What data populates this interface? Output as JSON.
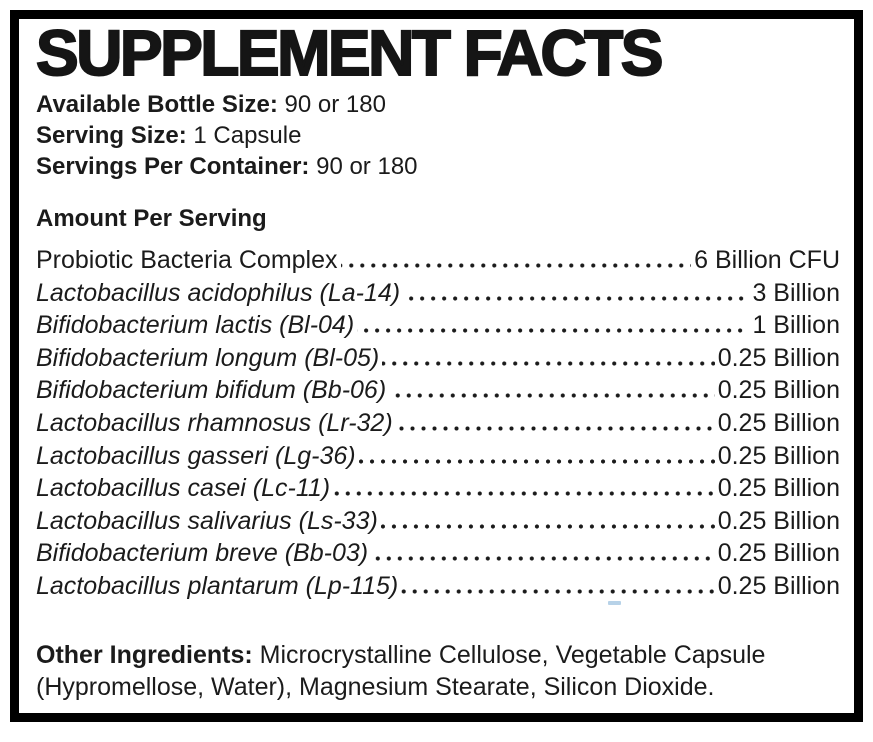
{
  "label": {
    "title": "SUPPLEMENT FACTS",
    "meta": [
      {
        "label": "Available Bottle Size:",
        "value": "90 or 180"
      },
      {
        "label": "Serving Size:",
        "value": "1 Capsule"
      },
      {
        "label": "Servings Per Container:",
        "value": "90 or 180"
      }
    ],
    "amount_heading": "Amount Per Serving",
    "rows": [
      {
        "name": "Probiotic Bacteria Complex",
        "amount": "6 Billion CFU",
        "italic": false
      },
      {
        "name": "Lactobacillus acidophilus (La-14)",
        "amount": "3 Billion",
        "italic": true
      },
      {
        "name": "Bifidobacterium lactis (Bl-04)",
        "amount": "1 Billion",
        "italic": true
      },
      {
        "name": "Bifidobacterium longum (Bl-05)",
        "amount": "0.25 Billion",
        "italic": true
      },
      {
        "name": "Bifidobacterium bifidum (Bb-06)",
        "amount": "0.25 Billion",
        "italic": true
      },
      {
        "name": "Lactobacillus rhamnosus (Lr-32)",
        "amount": "0.25 Billion",
        "italic": true
      },
      {
        "name": "Lactobacillus gasseri (Lg-36)",
        "amount": "0.25 Billion",
        "italic": true
      },
      {
        "name": "Lactobacillus casei (Lc-11)",
        "amount": "0.25 Billion",
        "italic": true
      },
      {
        "name": "Lactobacillus salivarius (Ls-33)",
        "amount": "0.25 Billion",
        "italic": true
      },
      {
        "name": "Bifidobacterium breve (Bb-03)",
        "amount": "0.25 Billion",
        "italic": true
      },
      {
        "name": "Lactobacillus plantarum (Lp-115)",
        "amount": "0.25 Billion",
        "italic": true
      }
    ],
    "other_ingredients_label": "Other Ingredients:",
    "other_ingredients_text": "Microcrystalline Cellulose, Vegetable Capsule (Hypromellose, Water), Magnesium Stearate, Silicon Dioxide.",
    "colors": {
      "text": "#1b1b1b",
      "border": "#000000",
      "background": "#ffffff",
      "artifact_blue": "#b7d2e8"
    }
  }
}
